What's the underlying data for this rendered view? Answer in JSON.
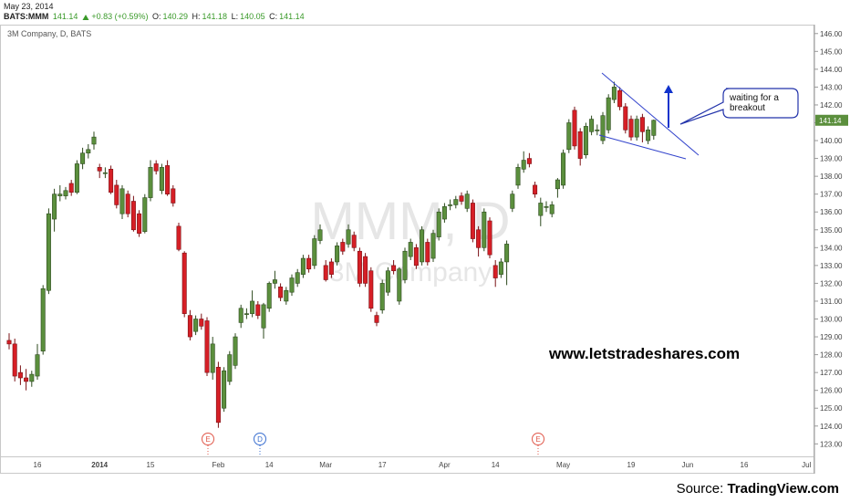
{
  "header": {
    "date": "May 23, 2014",
    "symbol": "BATS:MMM",
    "last": "141.14",
    "change": "+0.83 (+0.59%)",
    "open_label": "O:",
    "open": "140.29",
    "high_label": "H:",
    "high": "141.18",
    "low_label": "L:",
    "low": "140.05",
    "close_label": "C:",
    "close": "141.14"
  },
  "chart_data": {
    "type": "candlestick",
    "title": "3M Company, D, BATS",
    "watermark": "MMM, D",
    "watermark_subtitle": "3M Company",
    "categories": [
      null,
      null,
      null,
      null,
      null,
      "16",
      null,
      null,
      null,
      null,
      null,
      null,
      null,
      null,
      null,
      null,
      "2014",
      null,
      null,
      null,
      null,
      null,
      null,
      null,
      null,
      "15",
      null,
      null,
      null,
      null,
      null,
      null,
      null,
      null,
      null,
      null,
      null,
      "Feb",
      null,
      null,
      null,
      null,
      null,
      null,
      null,
      null,
      "14",
      null,
      null,
      null,
      null,
      null,
      null,
      null,
      null,
      null,
      "Mar",
      null,
      null,
      null,
      null,
      null,
      null,
      null,
      null,
      null,
      "17",
      null,
      null,
      null,
      null,
      null,
      null,
      null,
      null,
      null,
      null,
      "Apr",
      null,
      null,
      null,
      null,
      null,
      null,
      null,
      null,
      "14",
      null,
      null,
      null,
      null,
      null,
      null,
      null,
      null,
      null,
      null,
      null,
      "May",
      null,
      null,
      null,
      null,
      null,
      null,
      null,
      null,
      null,
      null,
      null,
      "19",
      null,
      null,
      null,
      null,
      null,
      null,
      null,
      null,
      null,
      "Jun",
      null,
      null,
      null,
      null,
      null,
      null,
      null,
      null,
      null,
      "16",
      null,
      null,
      null,
      null,
      null,
      null,
      null,
      null,
      null,
      null,
      "Jul",
      null
    ],
    "open": [
      128.8,
      128.6,
      127.0,
      126.7,
      126.5,
      126.8,
      128.2,
      131.6,
      135.6,
      136.9,
      136.9,
      137.6,
      137.1,
      138.7,
      139.3,
      139.8,
      138.5,
      138.2,
      138.4,
      137.5,
      135.9,
      137.0,
      136.6,
      135.9,
      134.9,
      136.8,
      138.7,
      137.2,
      138.6,
      137.3,
      135.2,
      133.7,
      130.2,
      129.3,
      130.0,
      129.9,
      127.0,
      127.3,
      125.0,
      126.5,
      127.4,
      129.8,
      130.3,
      130.3,
      130.8,
      129.5,
      130.6,
      132.0,
      131.8,
      131.0,
      131.5,
      132.0,
      132.5,
      133.4,
      133.0,
      134.4,
      133.0,
      133.2,
      133.2,
      134.3,
      134.2,
      134.7,
      133.8,
      133.5,
      132.7,
      130.2,
      130.5,
      131.5,
      133.0,
      131.0,
      132.2,
      133.5,
      134.0,
      133.2,
      134.3,
      133.4,
      134.6,
      135.6,
      136.4,
      136.4,
      136.9,
      136.2,
      136.5,
      135.0,
      134.0,
      135.5,
      133.0,
      132.5,
      133.2,
      136.2,
      137.5,
      138.4,
      139.0,
      137.5,
      135.8,
      136.3,
      135.9,
      137.3,
      137.5,
      139.5,
      141.7,
      140.5,
      139.2,
      140.5,
      140.6,
      140.0,
      140.6,
      142.3,
      142.8,
      141.9,
      141.2,
      140.2,
      141.3,
      140.0,
      140.29,
      null,
      null,
      null,
      null,
      null,
      null,
      null,
      null,
      null,
      null,
      null,
      null,
      null,
      null,
      null,
      null,
      null,
      null,
      null,
      null,
      null,
      null,
      null,
      null,
      null,
      null,
      null,
      null
    ],
    "high": [
      129.2,
      128.9,
      127.4,
      127.2,
      127.1,
      128.6,
      131.9,
      136.2,
      137.3,
      137.5,
      137.4,
      137.8,
      138.9,
      139.6,
      139.8,
      140.5,
      138.7,
      138.5,
      138.6,
      137.8,
      137.5,
      137.2,
      136.9,
      136.1,
      137.0,
      138.9,
      138.9,
      138.7,
      138.9,
      137.5,
      135.4,
      133.8,
      130.5,
      130.2,
      130.3,
      130.1,
      129.0,
      127.6,
      127.3,
      128.2,
      129.2,
      130.8,
      130.6,
      131.6,
      131.0,
      130.9,
      132.1,
      132.7,
      132.0,
      131.8,
      132.5,
      132.8,
      133.6,
      133.6,
      134.7,
      135.3,
      133.3,
      133.4,
      134.3,
      134.5,
      135.3,
      134.9,
      134.0,
      133.7,
      132.9,
      130.4,
      132.2,
      132.9,
      133.3,
      132.9,
      134.0,
      134.5,
      134.2,
      135.2,
      134.5,
      135.0,
      136.2,
      136.5,
      136.7,
      136.9,
      137.1,
      137.2,
      136.7,
      135.2,
      136.2,
      135.7,
      133.3,
      133.4,
      134.4,
      137.2,
      138.7,
      139.4,
      139.3,
      137.7,
      136.8,
      136.6,
      136.6,
      137.9,
      139.5,
      141.2,
      141.9,
      140.7,
      141.0,
      141.4,
      140.9,
      141.6,
      142.6,
      143.3,
      143.0,
      142.1,
      141.4,
      141.4,
      141.5,
      140.8,
      141.18,
      null,
      null,
      null,
      null,
      null,
      null,
      null,
      null,
      null,
      null,
      null,
      null,
      null,
      null,
      null,
      null,
      null,
      null,
      null,
      null,
      null,
      null,
      null,
      null,
      null,
      null,
      null,
      null
    ],
    "low": [
      128.3,
      126.5,
      126.3,
      126.0,
      126.2,
      126.6,
      128.0,
      131.4,
      134.9,
      136.6,
      136.7,
      136.9,
      137.0,
      138.4,
      139.0,
      139.5,
      137.9,
      137.9,
      137.0,
      136.2,
      135.6,
      135.7,
      134.9,
      134.6,
      134.8,
      136.6,
      138.1,
      137.0,
      136.9,
      136.3,
      133.8,
      130.1,
      128.8,
      129.1,
      129.4,
      126.8,
      126.6,
      123.9,
      124.8,
      126.3,
      127.2,
      129.5,
      130.0,
      130.1,
      130.0,
      128.9,
      130.4,
      131.7,
      131.0,
      130.8,
      131.3,
      131.8,
      132.3,
      132.6,
      132.8,
      134.2,
      132.1,
      132.3,
      133.0,
      133.6,
      134.0,
      133.8,
      131.8,
      131.8,
      130.4,
      129.6,
      130.3,
      131.3,
      132.5,
      130.8,
      132.0,
      133.3,
      132.8,
      133.0,
      133.0,
      133.2,
      134.4,
      135.4,
      136.1,
      136.2,
      136.4,
      136.0,
      134.3,
      133.5,
      133.8,
      133.4,
      131.8,
      132.3,
      131.9,
      136.0,
      137.3,
      138.2,
      138.5,
      136.8,
      135.2,
      136.0,
      135.7,
      136.8,
      137.3,
      139.3,
      139.5,
      138.6,
      139.0,
      140.3,
      140.3,
      139.8,
      140.4,
      142.1,
      141.7,
      140.4,
      140.0,
      140.0,
      139.9,
      139.8,
      140.05,
      null,
      null,
      null,
      null,
      null,
      null,
      null,
      null,
      null,
      null,
      null,
      null,
      null,
      null,
      null,
      null,
      null,
      null,
      null,
      null,
      null,
      null,
      null,
      null,
      null,
      null,
      null,
      null
    ],
    "close": [
      128.6,
      126.8,
      126.7,
      126.5,
      126.9,
      128.0,
      131.7,
      135.9,
      137.0,
      137.0,
      137.2,
      137.1,
      138.7,
      139.3,
      139.5,
      140.2,
      138.3,
      138.2,
      137.1,
      136.4,
      137.3,
      135.9,
      135.0,
      134.8,
      136.8,
      138.5,
      138.3,
      138.5,
      137.0,
      136.5,
      133.9,
      130.3,
      129.0,
      130.0,
      129.6,
      127.0,
      128.6,
      124.2,
      127.1,
      128.0,
      129.0,
      130.6,
      130.3,
      131.0,
      130.2,
      130.8,
      132.0,
      132.2,
      131.2,
      131.6,
      132.3,
      132.6,
      133.4,
      132.8,
      134.5,
      135.0,
      132.2,
      132.5,
      134.1,
      133.8,
      135.0,
      134.0,
      132.0,
      132.0,
      130.6,
      129.8,
      132.0,
      132.7,
      132.7,
      132.8,
      133.8,
      134.3,
      133.0,
      135.0,
      133.2,
      134.8,
      136.0,
      136.3,
      136.4,
      136.7,
      136.6,
      137.0,
      134.5,
      134.0,
      136.0,
      133.6,
      132.3,
      133.2,
      134.2,
      137.0,
      138.5,
      138.9,
      138.7,
      137.0,
      136.5,
      136.3,
      136.4,
      137.8,
      139.3,
      141.0,
      139.7,
      139.0,
      140.8,
      141.2,
      140.6,
      141.4,
      142.4,
      143.0,
      141.9,
      140.6,
      140.2,
      141.2,
      140.5,
      140.6,
      141.14,
      null,
      null,
      null,
      null,
      null,
      null,
      null,
      null,
      null,
      null,
      null,
      null,
      null,
      null,
      null,
      null,
      null,
      null,
      null,
      null,
      null,
      null,
      null,
      null,
      null,
      null,
      null,
      null
    ],
    "up_color": "#5b8f3d",
    "down_color": "#d61f26",
    "ylim": [
      122.3,
      146.5
    ],
    "yticks": [
      {
        "value": 123,
        "label": "123.00"
      },
      {
        "value": 124,
        "label": "124.00"
      },
      {
        "value": 125,
        "label": "125.00"
      },
      {
        "value": 126,
        "label": "126.00"
      },
      {
        "value": 127,
        "label": "127.00"
      },
      {
        "value": 128,
        "label": "128.00"
      },
      {
        "value": 129,
        "label": "129.00"
      },
      {
        "value": 130,
        "label": "130.00"
      },
      {
        "value": 131,
        "label": "131.00"
      },
      {
        "value": 132,
        "label": "132.00"
      },
      {
        "value": 133,
        "label": "133.00"
      },
      {
        "value": 134,
        "label": "134.00"
      },
      {
        "value": 135,
        "label": "135.00"
      },
      {
        "value": 136,
        "label": "136.00"
      },
      {
        "value": 137,
        "label": "137.00"
      },
      {
        "value": 138,
        "label": "138.00"
      },
      {
        "value": 139,
        "label": "139.00"
      },
      {
        "value": 140,
        "label": "140.00"
      },
      {
        "value": 141,
        "label": "141.00"
      },
      {
        "value": 142,
        "label": "142.00"
      },
      {
        "value": 143,
        "label": "143.00"
      },
      {
        "value": 144,
        "label": "144.00"
      },
      {
        "value": 145,
        "label": "145.00"
      },
      {
        "value": 146,
        "label": "146.00"
      }
    ],
    "price_label": {
      "value": 141.14,
      "label": "141.14"
    },
    "events": [
      "E",
      "D",
      "E"
    ]
  },
  "annotations": {
    "callout": [
      "waiting for a",
      "breakout"
    ],
    "website": "www.letstradeshares.com"
  },
  "footer": {
    "source_label": "Source:",
    "source_name": "TradingView.com"
  }
}
